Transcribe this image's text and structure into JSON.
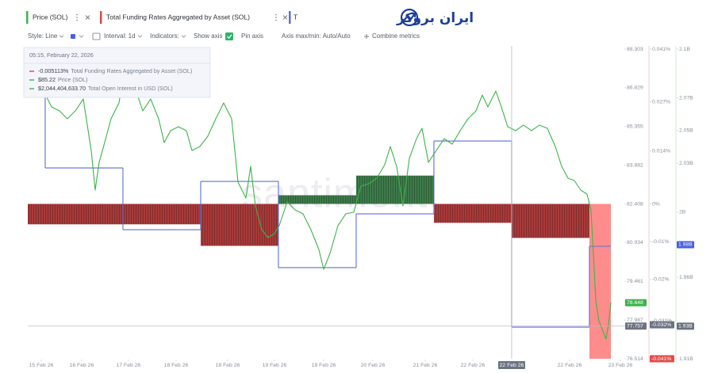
{
  "tabs": [
    "Price (SOL)",
    "Total Funding Rates Aggregated by Asset (SOL)",
    "T"
  ],
  "logo": "ایران بروکر",
  "toolbar": {
    "style": "Style: Line",
    "interval": "Interval: 1d",
    "indicators": "Indicators:",
    "show_axis": "Show axis",
    "pin_axis": "Pin axis",
    "axis_maxmin": "Axis max/min: Auto/Auto",
    "combine": "Combine metrics"
  },
  "tooltip": {
    "date": "05:15, February 22, 2026",
    "items": [
      {
        "value": "-0.005113%",
        "name": "Total Funding Rates Aggregated by Asset (SOL)",
        "color": "#d24b4b"
      },
      {
        "value": "$85.22",
        "name": "Price (SOL)",
        "color": "#3cb54a"
      },
      {
        "value": "$2,044,404,633.70",
        "name": "Total Open Interest in USD (SOL)",
        "color": "#3cb54a"
      }
    ]
  },
  "chart_data": {
    "type": "mixed",
    "watermark": "santiment.",
    "xlim": [
      -0.224,
      7.531
    ],
    "xticks": [
      {
        "value": -0.051,
        "label": "15 Feb 26"
      },
      {
        "value": 0.469,
        "label": "16 Feb 26"
      },
      {
        "value": 1.071,
        "label": "17 Feb 26"
      },
      {
        "value": 1.684,
        "label": "18 Feb 26"
      },
      {
        "value": 2.347,
        "label": "18 Feb 26"
      },
      {
        "value": 2.949,
        "label": "19 Feb 26"
      },
      {
        "value": 3.582,
        "label": "19 Feb 26"
      },
      {
        "value": 4.214,
        "label": "20 Feb 26"
      },
      {
        "value": 4.888,
        "label": "21 Feb 26"
      },
      {
        "value": 5.5,
        "label": "22 Feb 26"
      },
      {
        "value": 6.745,
        "label": "22 Feb 26"
      },
      {
        "value": 7.398,
        "label": "23 Feb 26"
      }
    ],
    "ylim": [
      76.514,
      88.303
    ],
    "yticks": [
      88.303,
      86.829,
      85.355,
      83.882,
      82.408,
      80.934,
      79.461,
      77.987,
      76.514
    ],
    "y2lim": [
      -0.041,
      0.041
    ],
    "y2ticks": [
      {
        "value": 0.041,
        "label": "0.041%"
      },
      {
        "value": 0.027,
        "label": "0.027%"
      },
      {
        "value": 0.014,
        "label": "0.014%"
      },
      {
        "value": 0,
        "label": "0%"
      },
      {
        "value": -0.01,
        "label": "-0.01%"
      },
      {
        "value": -0.02,
        "label": "-0.02%"
      },
      {
        "value": -0.031,
        "label": "-0.031%"
      },
      {
        "value": -0.041,
        "label": "-0.041%"
      }
    ],
    "y3lim": [
      1910000000,
      2100000000
    ],
    "y3ticks": [
      {
        "value": 2100000000,
        "label": "2.1B"
      },
      {
        "value": 2070000000,
        "label": "2.07B"
      },
      {
        "value": 2050000000,
        "label": "2.05B"
      },
      {
        "value": 2030000000,
        "label": "2.03B"
      },
      {
        "value": 2000000000,
        "label": "2B"
      },
      {
        "value": 1980000000,
        "label": "1.98B"
      },
      {
        "value": 1960000000,
        "label": "1.96B"
      },
      {
        "value": 1930000000,
        "label": "1.93B"
      },
      {
        "value": 1910000000,
        "label": "1.91B"
      }
    ],
    "grid": false,
    "series": [
      {
        "name": "Price (SOL)",
        "type": "line",
        "axis": "y",
        "color": "#3cb54a",
        "x": [
          -0.224,
          -0.122,
          -0.02,
          0.082,
          0.184,
          0.286,
          0.388,
          0.49,
          0.592,
          0.643,
          0.694,
          0.765,
          0.847,
          0.949,
          1.051,
          1.153,
          1.255,
          1.357,
          1.459,
          1.531,
          1.612,
          1.714,
          1.816,
          1.888,
          1.99,
          2.092,
          2.194,
          2.296,
          2.398,
          2.48,
          2.582,
          2.643,
          2.704,
          2.786,
          2.867,
          2.949,
          3.01,
          3.112,
          3.214,
          3.316,
          3.418,
          3.52,
          3.582,
          3.663,
          3.765,
          3.867,
          3.969,
          4.061,
          4.163,
          4.265,
          4.367,
          4.439,
          4.52,
          4.602,
          4.684,
          4.776,
          4.847,
          4.929,
          5.031,
          5.133,
          5.235,
          5.337,
          5.439,
          5.541,
          5.622,
          5.694,
          5.796,
          5.867,
          5.949,
          6.051,
          6.153,
          6.255,
          6.357,
          6.459,
          6.561,
          6.643,
          6.724,
          6.806,
          6.888,
          6.969,
          7.02,
          7.051,
          7.082,
          7.122,
          7.173,
          7.214,
          7.245,
          7.276
        ],
        "values": [
          86.554,
          87.157,
          86.705,
          86.102,
          85.951,
          85.65,
          85.951,
          86.403,
          84.444,
          82.936,
          83.991,
          84.745,
          85.65,
          86.253,
          88.062,
          86.856,
          85.951,
          86.403,
          85.65,
          84.745,
          85.197,
          85.348,
          85.197,
          84.444,
          84.594,
          84.986,
          85.65,
          86.253,
          85.65,
          83.238,
          82.635,
          83.841,
          82.333,
          81.429,
          81.127,
          81.278,
          81.579,
          82.484,
          82.182,
          82.032,
          81.429,
          80.675,
          79.921,
          80.524,
          81.579,
          82.032,
          82.092,
          83.087,
          83.177,
          83.388,
          83.901,
          84.594,
          83.841,
          82.333,
          84.142,
          84.896,
          85.288,
          83.991,
          84.444,
          84.896,
          84.685,
          85.197,
          85.65,
          85.951,
          86.554,
          86.102,
          86.705,
          86.102,
          85.348,
          85.197,
          85.409,
          85.197,
          85.409,
          85.288,
          84.594,
          83.841,
          83.388,
          83.298,
          82.936,
          82.785,
          82.182,
          80.524,
          78.715,
          77.961,
          77.569,
          77.268,
          77.81,
          78.648
        ]
      },
      {
        "name": "Total Funding Rates Aggregated by Asset (SOL)",
        "type": "bar",
        "axis": "y2",
        "bins": [
          -0.224,
          1,
          2,
          3,
          4,
          5,
          6,
          7,
          7.276
        ],
        "values": [
          -0.0054,
          -0.0054,
          -0.0111,
          0.0023,
          0.0075,
          -0.005,
          -0.009,
          -0.041
        ],
        "colors": [
          "#a83a3a",
          "#a83a3a",
          "#a83a3a",
          "#3d7a4a",
          "#3d7a4a",
          "#a83a3a",
          "#a83a3a",
          "#ff8c8c"
        ]
      },
      {
        "name": "Total Open Interest in USD (SOL)",
        "type": "step",
        "axis": "y3",
        "color": "#5b6fd6",
        "bins": [
          -0.224,
          0,
          1,
          2,
          3,
          4,
          5,
          6,
          7,
          7.276
        ],
        "values": [
          2086400000,
          2027100000,
          1989200000,
          2018800000,
          1965900000,
          1998900000,
          2043600000,
          1929400000,
          1979000000
        ]
      }
    ],
    "current_tags": {
      "y": 78.648,
      "y2": {
        "value": -0.041,
        "label": "-0.041%"
      },
      "y3": {
        "value": 1980000000,
        "label": "1.98B"
      }
    },
    "crosshair": {
      "x": {
        "value": 6.0,
        "label": "22 Feb 26"
      },
      "y": 77.757,
      "y2": {
        "value": -0.032,
        "label": "-0.032%"
      },
      "y3": {
        "value": 1930000000,
        "label": "1.93B"
      }
    }
  }
}
